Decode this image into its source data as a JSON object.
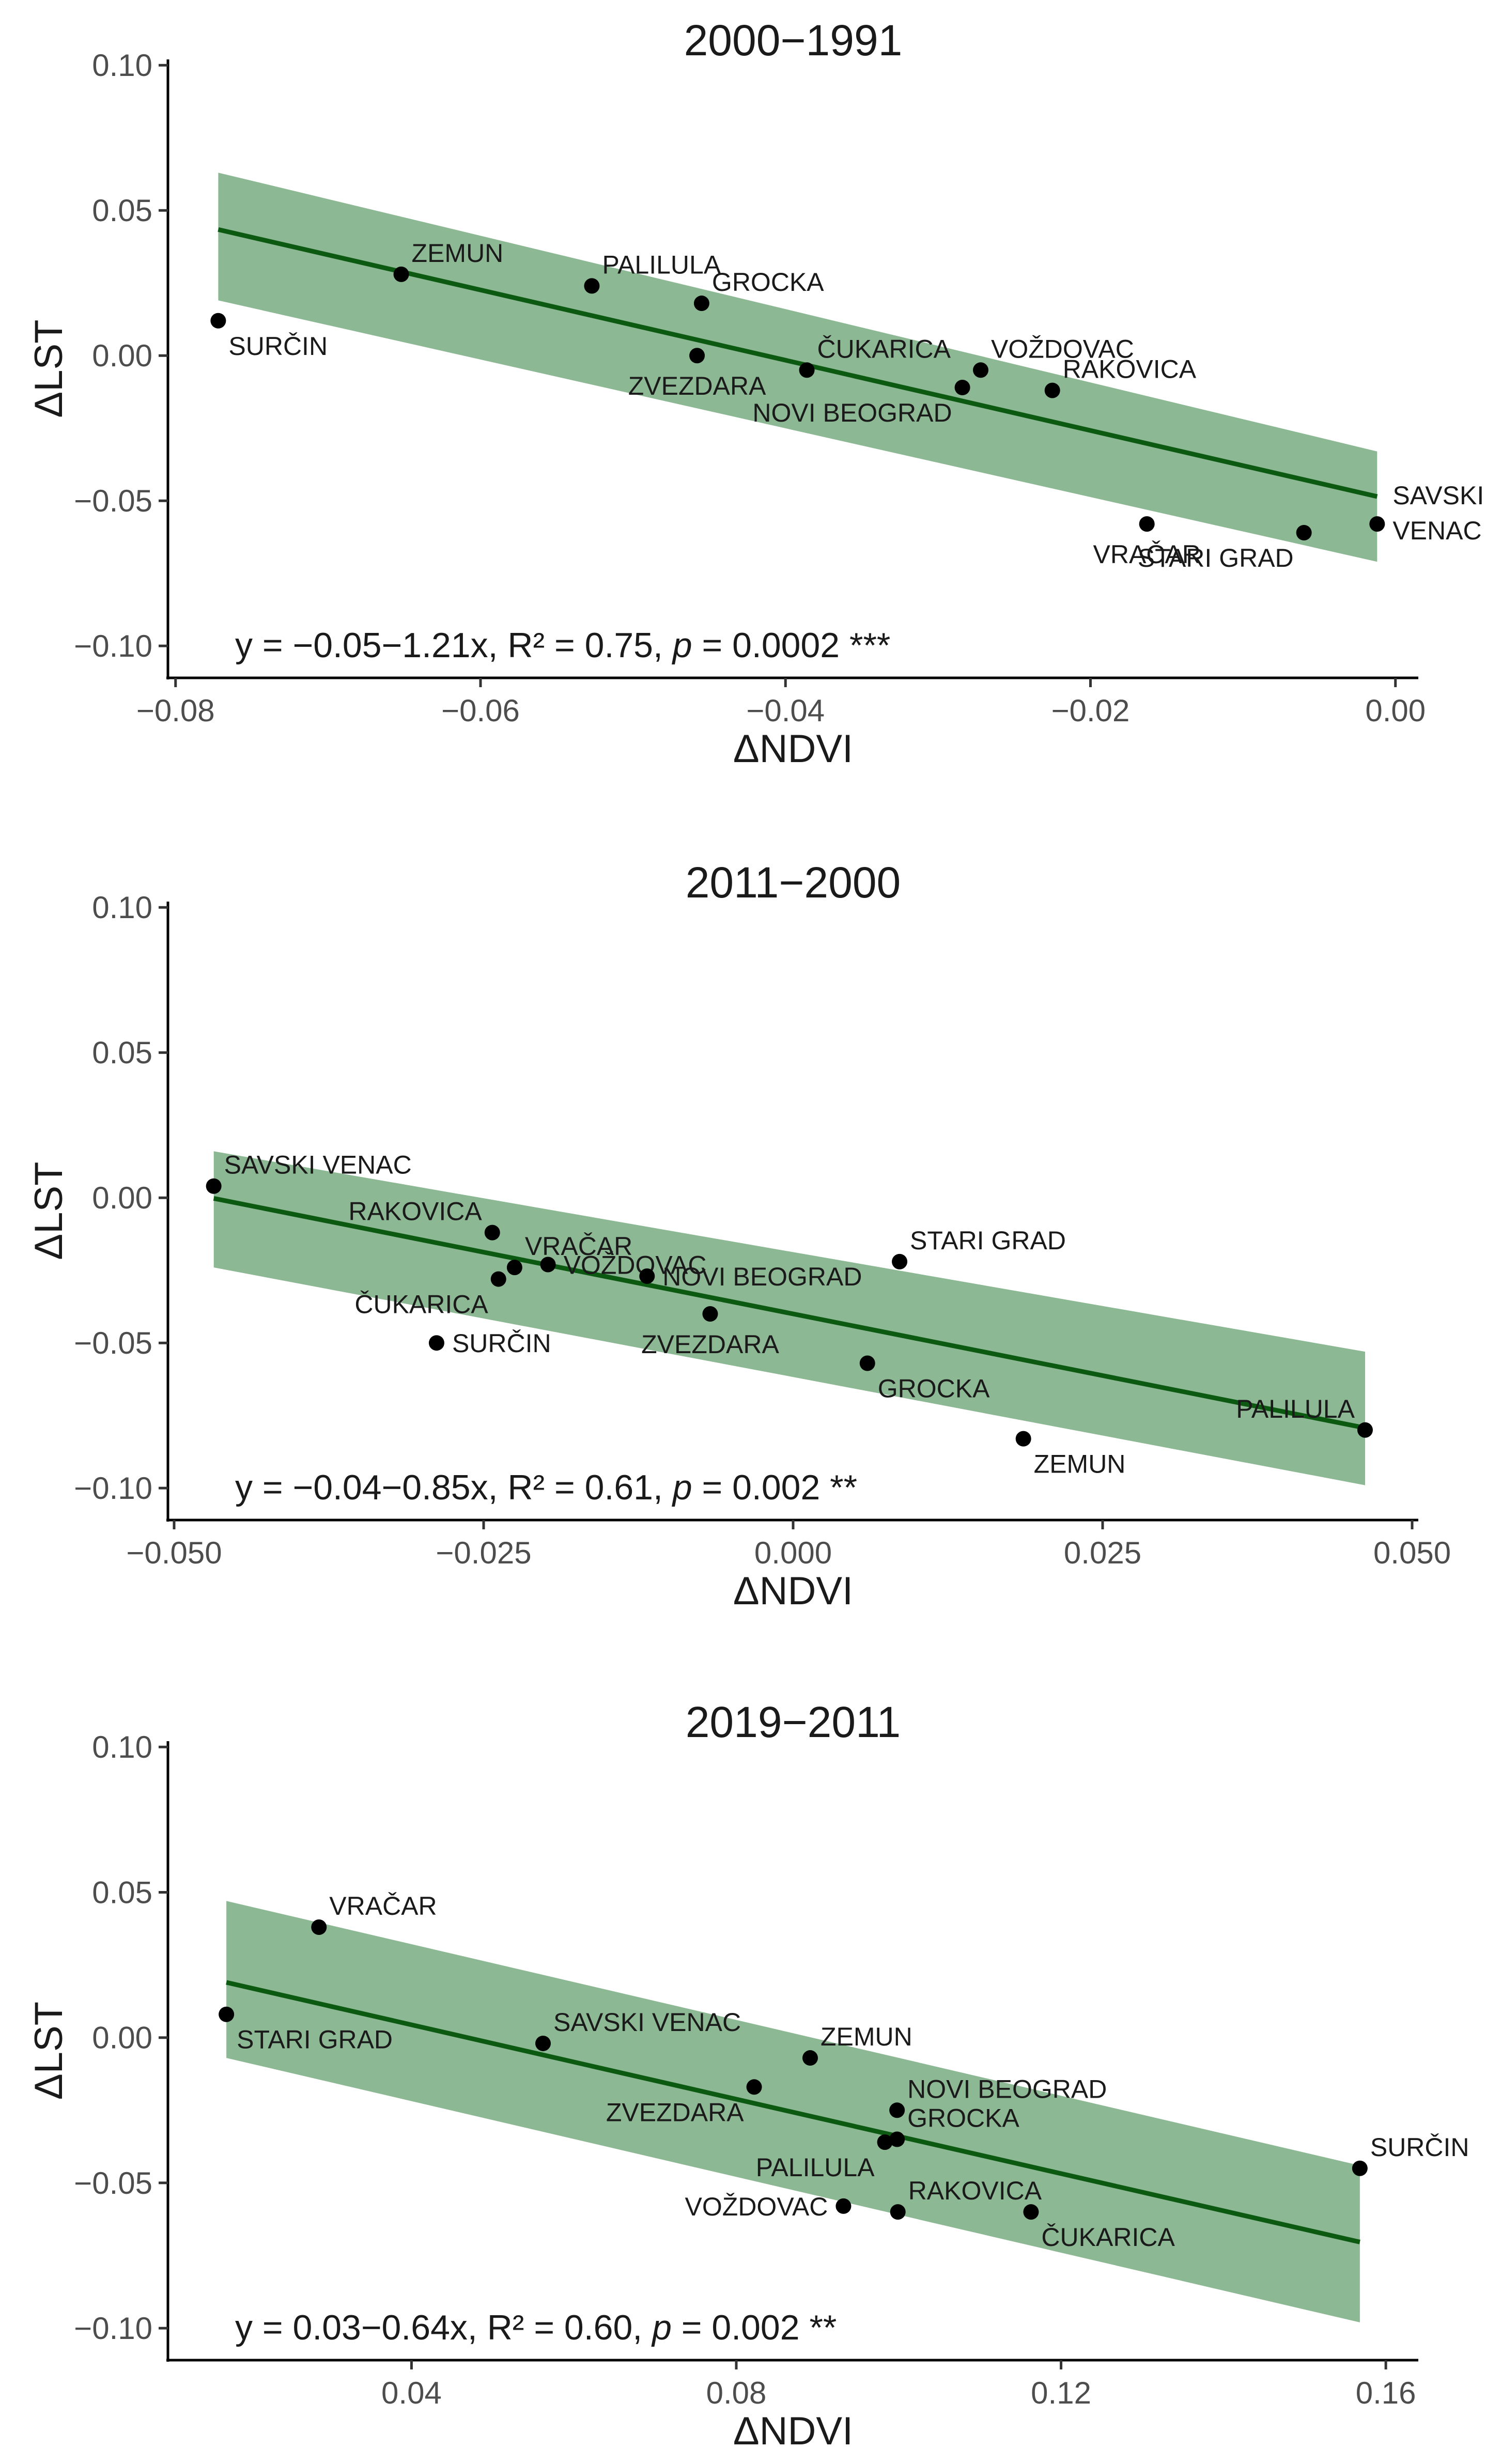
{
  "colors": {
    "band": "#8db894",
    "line": "#0c5a12",
    "point": "#000000"
  },
  "chart_data": [
    {
      "type": "scatter",
      "title": "2000−1991",
      "xlabel": "ΔNDVI",
      "ylabel": "ΔLST",
      "xlim": [
        -0.0805,
        0.0015
      ],
      "ylim": [
        -0.111,
        0.102
      ],
      "xticks": [
        -0.08,
        -0.06,
        -0.04,
        -0.02,
        0.0
      ],
      "xtick_labels": [
        "−0.08",
        "−0.06",
        "−0.04",
        "−0.02",
        "0.00"
      ],
      "yticks": [
        0.1,
        0.05,
        0.0,
        -0.05,
        -0.1
      ],
      "ytick_labels": [
        "0.10",
        "0.05",
        "0.00",
        "−0.05",
        "−0.10"
      ],
      "points": [
        {
          "label": "SURČIN",
          "x": -0.0772,
          "y": 0.012,
          "label_pos": "below-right"
        },
        {
          "label": "ZEMUN",
          "x": -0.0652,
          "y": 0.028,
          "label_pos": "above-right"
        },
        {
          "label": "PALILULA",
          "x": -0.0527,
          "y": 0.024,
          "label_pos": "above-right"
        },
        {
          "label": "GROCKA",
          "x": -0.0455,
          "y": 0.018,
          "label_pos": "above-right"
        },
        {
          "label": "ZVEZDARA",
          "x": -0.0458,
          "y": 0.0,
          "label_pos": "below"
        },
        {
          "label": "ČUKARICA",
          "x": -0.0386,
          "y": -0.005,
          "label_pos": "above-right"
        },
        {
          "label": "VOŽDOVAC",
          "x": -0.0272,
          "y": -0.005,
          "label_pos": "above-right"
        },
        {
          "label": "NOVI BEOGRAD",
          "x": -0.0284,
          "y": -0.011,
          "label_pos": "below-left"
        },
        {
          "label": "RAKOVICA",
          "x": -0.0225,
          "y": -0.012,
          "label_pos": "above-right"
        },
        {
          "label": "VRAČAR",
          "x": -0.0163,
          "y": -0.058,
          "label_pos": "below"
        },
        {
          "label": "STARI GRAD",
          "x": -0.006,
          "y": -0.061,
          "label_pos": "below-left"
        },
        {
          "label": "SAVSKI\nVENAC",
          "x": -0.0012,
          "y": -0.058,
          "label_pos": "right"
        }
      ],
      "fit": {
        "intercept": -0.05,
        "slope": -1.21,
        "x_range": [
          -0.0772,
          -0.0012
        ]
      },
      "band": {
        "lower_at_start": 0.019,
        "upper_at_start": 0.063,
        "lower_at_end": -0.071,
        "upper_at_end": -0.033
      },
      "equation": {
        "prefix": "y = −0.05−1.21x, R² = 0.75, ",
        "p": "p",
        "suffix": " = 0.0002 ***"
      }
    },
    {
      "type": "scatter",
      "title": "2011−2000",
      "xlabel": "ΔNDVI",
      "ylabel": "ΔLST",
      "xlim": [
        -0.0505,
        0.0505
      ],
      "ylim": [
        -0.111,
        0.102
      ],
      "xticks": [
        -0.05,
        -0.025,
        0.0,
        0.025,
        0.05
      ],
      "xtick_labels": [
        "−0.050",
        "−0.025",
        "0.000",
        "0.025",
        "0.050"
      ],
      "yticks": [
        0.1,
        0.05,
        0.0,
        -0.05,
        -0.1
      ],
      "ytick_labels": [
        "0.10",
        "0.05",
        "0.00",
        "−0.05",
        "−0.10"
      ],
      "points": [
        {
          "label": "SAVSKI VENAC",
          "x": -0.0468,
          "y": 0.004,
          "label_pos": "above-right"
        },
        {
          "label": "RAKOVICA",
          "x": -0.0243,
          "y": -0.012,
          "label_pos": "above-left"
        },
        {
          "label": "VRAČAR",
          "x": -0.0225,
          "y": -0.024,
          "label_pos": "above-right"
        },
        {
          "label": "VOŽDOVAC",
          "x": -0.0198,
          "y": -0.023,
          "label_pos": "right"
        },
        {
          "label": "ČUKARICA",
          "x": -0.0238,
          "y": -0.028,
          "label_pos": "below-left"
        },
        {
          "label": "NOVI BEOGRAD",
          "x": -0.0118,
          "y": -0.027,
          "label_pos": "right"
        },
        {
          "label": "SURČIN",
          "x": -0.0288,
          "y": -0.05,
          "label_pos": "right"
        },
        {
          "label": "ZVEZDARA",
          "x": -0.0067,
          "y": -0.04,
          "label_pos": "below"
        },
        {
          "label": "STARI GRAD",
          "x": 0.0086,
          "y": -0.022,
          "label_pos": "above-right"
        },
        {
          "label": "GROCKA",
          "x": 0.006,
          "y": -0.057,
          "label_pos": "below-right"
        },
        {
          "label": "ZEMUN",
          "x": 0.0186,
          "y": -0.083,
          "label_pos": "below-right"
        },
        {
          "label": "PALILULA",
          "x": 0.0462,
          "y": -0.08,
          "label_pos": "above-left"
        }
      ],
      "fit": {
        "intercept": -0.04,
        "slope": -0.85,
        "x_range": [
          -0.0468,
          0.0462
        ]
      },
      "band": {
        "lower_at_start": -0.024,
        "upper_at_start": 0.016,
        "lower_at_end": -0.099,
        "upper_at_end": -0.053
      },
      "equation": {
        "prefix": "y = −0.04−0.85x, R² = 0.61, ",
        "p": "p",
        "suffix": " = 0.002 **"
      }
    },
    {
      "type": "scatter",
      "title": "2019−2011",
      "xlabel": "ΔNDVI",
      "ylabel": "ΔLST",
      "xlim": [
        0.01,
        0.164
      ],
      "ylim": [
        -0.111,
        0.102
      ],
      "xticks": [
        0.04,
        0.08,
        0.12,
        0.16
      ],
      "xtick_labels": [
        "0.04",
        "0.08",
        "0.12",
        "0.16"
      ],
      "yticks": [
        0.1,
        0.05,
        0.0,
        -0.05,
        -0.1
      ],
      "ytick_labels": [
        "0.10",
        "0.05",
        "0.00",
        "−0.05",
        "−0.10"
      ],
      "points": [
        {
          "label": "VRAČAR",
          "x": 0.0286,
          "y": 0.038,
          "label_pos": "above-right"
        },
        {
          "label": "STARI GRAD",
          "x": 0.0172,
          "y": 0.008,
          "label_pos": "below-right"
        },
        {
          "label": "SAVSKI VENAC",
          "x": 0.0562,
          "y": -0.002,
          "label_pos": "above-right"
        },
        {
          "label": "ZEMUN",
          "x": 0.0891,
          "y": -0.007,
          "label_pos": "above-right"
        },
        {
          "label": "ZVEZDARA",
          "x": 0.0822,
          "y": -0.017,
          "label_pos": "below-left"
        },
        {
          "label": "NOVI BEOGRAD",
          "x": 0.0998,
          "y": -0.025,
          "label_pos": "above-right"
        },
        {
          "label": "GROCKA",
          "x": 0.0998,
          "y": -0.035,
          "label_pos": "above-right"
        },
        {
          "label": "PALILULA",
          "x": 0.0983,
          "y": -0.036,
          "label_pos": "below-left"
        },
        {
          "label": "VOŽDOVAC",
          "x": 0.0932,
          "y": -0.058,
          "label_pos": "left"
        },
        {
          "label": "RAKOVICA",
          "x": 0.0999,
          "y": -0.06,
          "label_pos": "above-right"
        },
        {
          "label": "ČUKARICA",
          "x": 0.1163,
          "y": -0.06,
          "label_pos": "below-right"
        },
        {
          "label": "SURČIN",
          "x": 0.1568,
          "y": -0.045,
          "label_pos": "above-right"
        }
      ],
      "fit": {
        "intercept": 0.03,
        "slope": -0.64,
        "x_range": [
          0.0172,
          0.1568
        ]
      },
      "band": {
        "lower_at_start": -0.007,
        "upper_at_start": 0.047,
        "lower_at_end": -0.098,
        "upper_at_end": -0.044
      },
      "equation": {
        "prefix": "y = 0.03−0.64x, R² = 0.60, ",
        "p": "p",
        "suffix": " = 0.002 **"
      }
    }
  ]
}
